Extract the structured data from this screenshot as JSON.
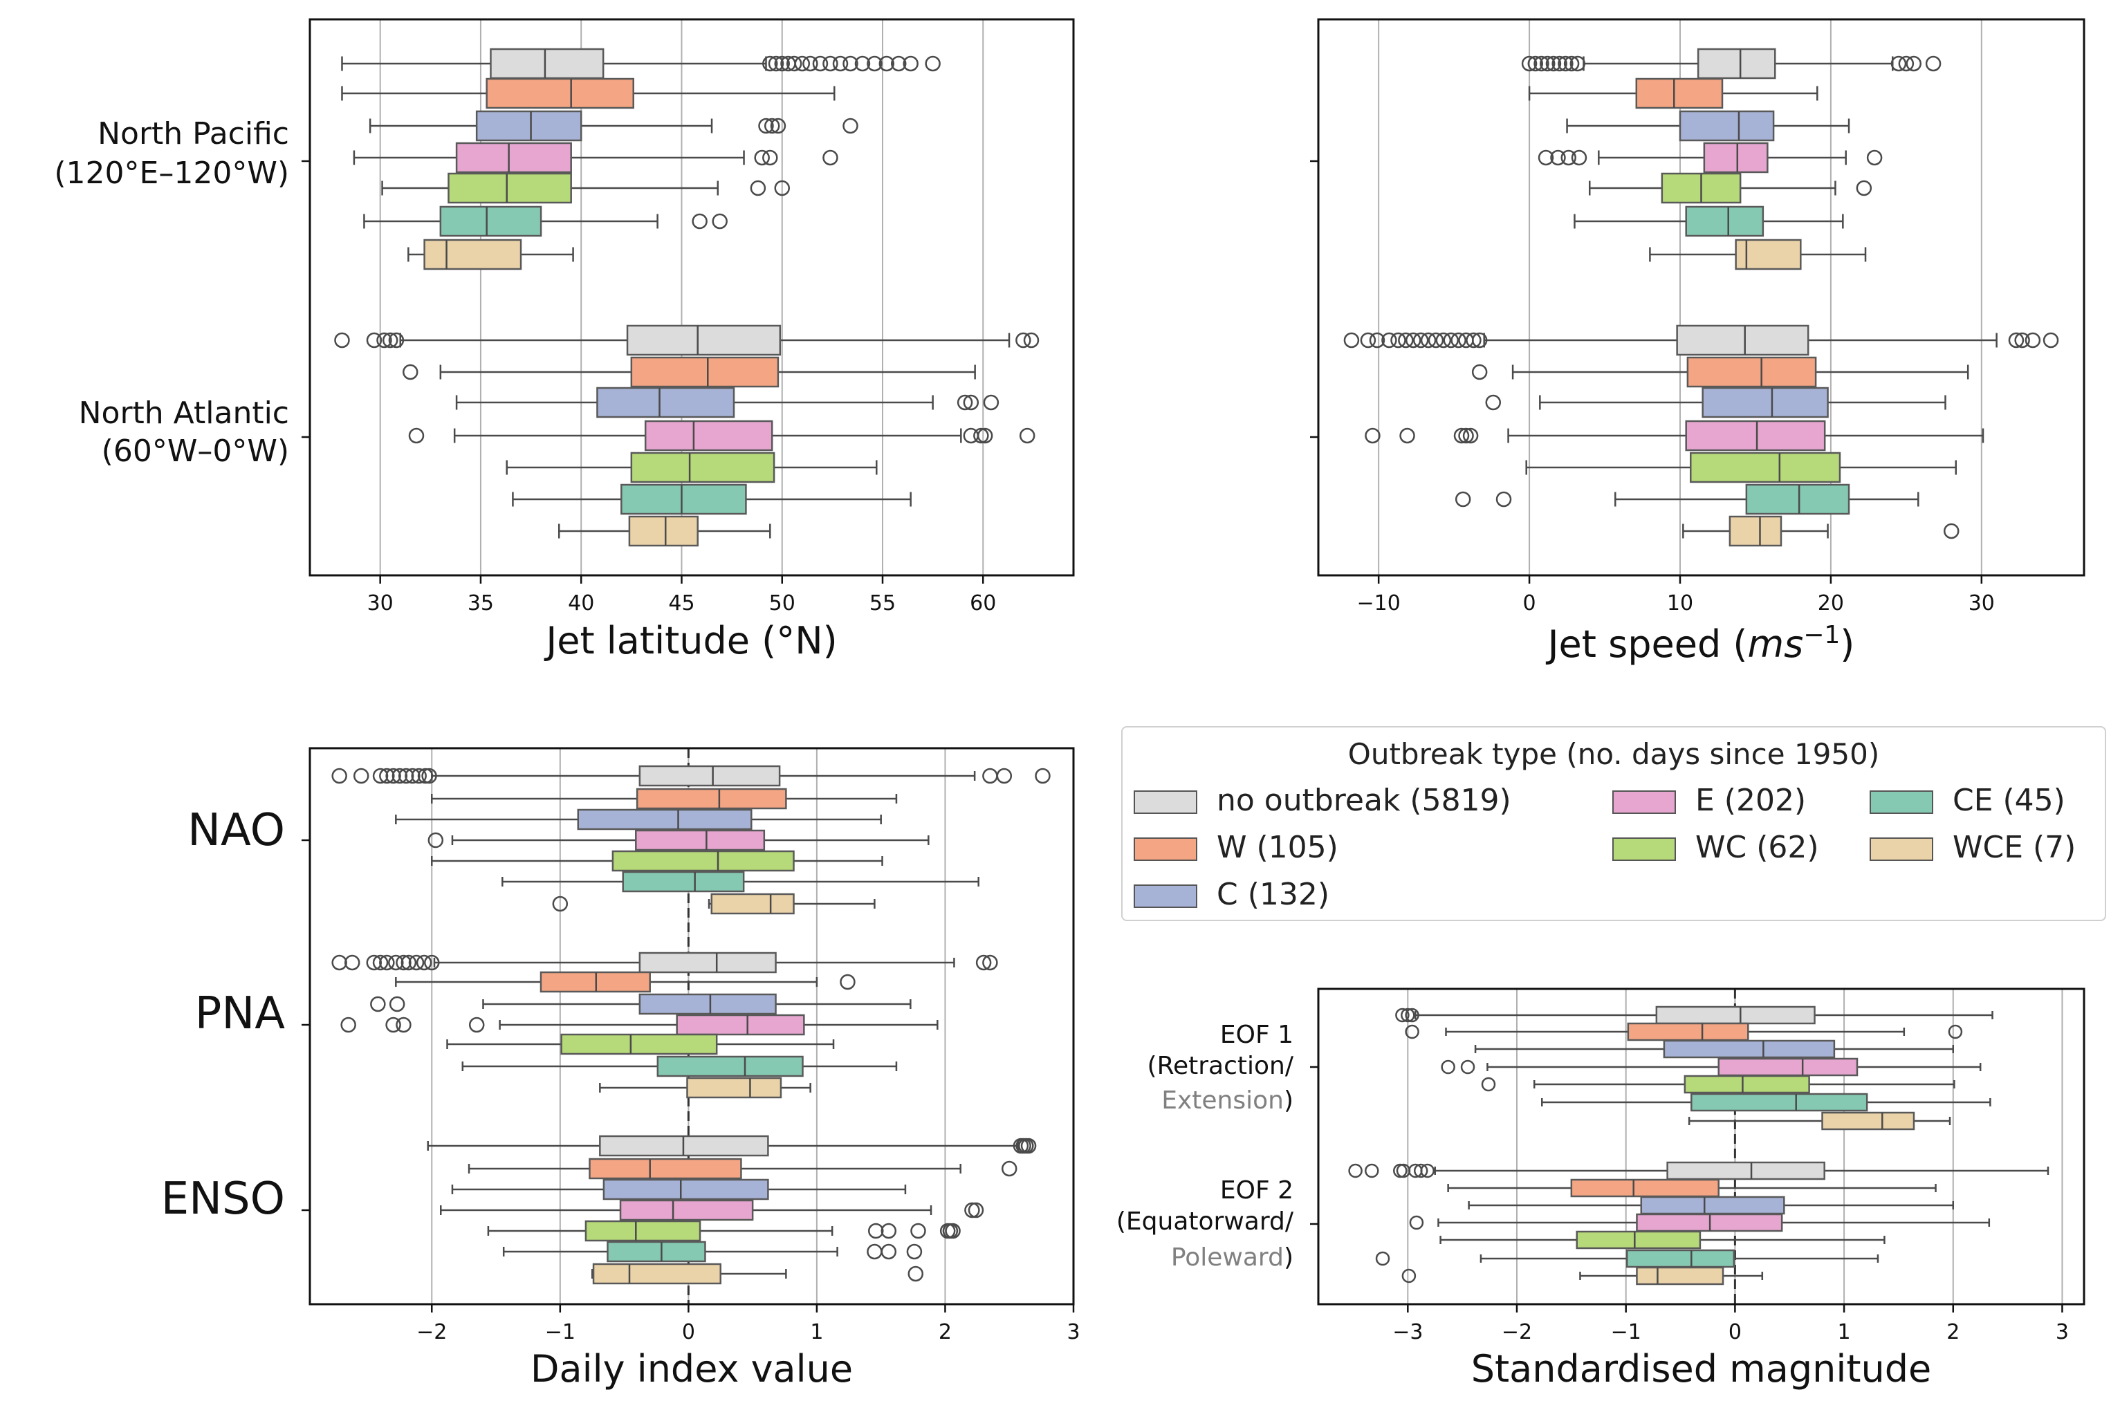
{
  "legend": {
    "title": "Outbreak type (no. days since 1950)",
    "entries": [
      {
        "label": "no outbreak (5819)",
        "color": "#dcdcdc"
      },
      {
        "label": "W (105)",
        "color": "#f4a583"
      },
      {
        "label": "C (132)",
        "color": "#a7b3d6"
      },
      {
        "label": "E (202)",
        "color": "#e6a6cf"
      },
      {
        "label": "WC (62)",
        "color": "#b6d979"
      },
      {
        "label": "CE (45)",
        "color": "#86c9b3"
      },
      {
        "label": "WCE (7)",
        "color": "#ebd3a9"
      }
    ]
  },
  "chart_data": [
    {
      "type": "boxplot",
      "xlabel": "Jet latitude (°N)",
      "xlim": [
        26.5,
        64.5
      ],
      "xticks": [
        30,
        35,
        40,
        45,
        50,
        55,
        60
      ],
      "grid": "vertical",
      "groups": [
        {
          "label_lines": [
            "North Pacific",
            "(120°E–120°W)"
          ],
          "boxes": [
            {
              "q1": 35.5,
              "med": 38.2,
              "q3": 41.1,
              "wlo": 28.1,
              "whi": 49.2,
              "out": [
                49.4,
                49.7,
                50.0,
                50.3,
                50.6,
                51.0,
                51.4,
                51.9,
                52.4,
                52.9,
                53.4,
                54.0,
                54.6,
                55.2,
                55.8,
                56.4,
                57.5
              ]
            },
            {
              "q1": 35.3,
              "med": 39.5,
              "q3": 42.6,
              "wlo": 28.1,
              "whi": 52.6,
              "out": []
            },
            {
              "q1": 34.8,
              "med": 37.5,
              "q3": 40.0,
              "wlo": 29.5,
              "whi": 46.5,
              "out": [
                49.2,
                49.5,
                49.8,
                53.4
              ]
            },
            {
              "q1": 33.8,
              "med": 36.4,
              "q3": 39.5,
              "wlo": 28.7,
              "whi": 48.1,
              "out": [
                49.0,
                49.4,
                52.4
              ]
            },
            {
              "q1": 33.4,
              "med": 36.3,
              "q3": 39.5,
              "wlo": 30.1,
              "whi": 46.8,
              "out": [
                48.8,
                50.0
              ]
            },
            {
              "q1": 33.0,
              "med": 35.3,
              "q3": 38.0,
              "wlo": 29.2,
              "whi": 43.8,
              "out": [
                45.9,
                46.9
              ]
            },
            {
              "q1": 32.2,
              "med": 33.3,
              "q3": 37.0,
              "wlo": 31.4,
              "whi": 39.6,
              "out": []
            }
          ]
        },
        {
          "label_lines": [
            "North Atlantic",
            "(60°W–0°W)"
          ],
          "boxes": [
            {
              "q1": 42.3,
              "med": 45.8,
              "q3": 49.9,
              "wlo": 31.0,
              "whi": 61.3,
              "out": [
                28.1,
                29.7,
                30.2,
                30.5,
                30.8,
                62.0,
                62.4
              ]
            },
            {
              "q1": 42.5,
              "med": 46.3,
              "q3": 49.8,
              "wlo": 33.0,
              "whi": 59.6,
              "out": [
                31.5
              ]
            },
            {
              "q1": 40.8,
              "med": 43.9,
              "q3": 47.6,
              "wlo": 33.8,
              "whi": 57.5,
              "out": [
                59.1,
                59.4,
                60.4
              ]
            },
            {
              "q1": 43.2,
              "med": 45.6,
              "q3": 49.5,
              "wlo": 33.7,
              "whi": 58.9,
              "out": [
                31.8,
                59.4,
                59.9,
                60.1,
                62.2
              ]
            },
            {
              "q1": 42.5,
              "med": 45.4,
              "q3": 49.6,
              "wlo": 36.3,
              "whi": 54.7,
              "out": []
            },
            {
              "q1": 42.0,
              "med": 45.0,
              "q3": 48.2,
              "wlo": 36.6,
              "whi": 56.4,
              "out": []
            },
            {
              "q1": 42.4,
              "med": 44.2,
              "q3": 45.8,
              "wlo": 38.9,
              "whi": 49.4,
              "out": []
            }
          ]
        }
      ]
    },
    {
      "type": "boxplot",
      "xlabel": "Jet speed (ms⁻¹)",
      "xlim": [
        -14.0,
        36.8
      ],
      "xticks": [
        -10,
        0,
        10,
        20,
        30
      ],
      "grid": "vertical",
      "groups": [
        {
          "label_lines": [],
          "boxes": [
            {
              "q1": 11.2,
              "med": 14.0,
              "q3": 16.3,
              "wlo": 3.6,
              "whi": 24.1,
              "out": [
                0.0,
                0.4,
                0.8,
                1.2,
                1.6,
                2.0,
                2.4,
                2.8,
                3.2,
                24.5,
                25.0,
                25.5,
                26.8
              ]
            },
            {
              "q1": 7.1,
              "med": 9.6,
              "q3": 12.8,
              "wlo": 0.0,
              "whi": 19.1,
              "out": []
            },
            {
              "q1": 10.0,
              "med": 13.9,
              "q3": 16.2,
              "wlo": 2.5,
              "whi": 21.2,
              "out": []
            },
            {
              "q1": 11.6,
              "med": 13.8,
              "q3": 15.8,
              "wlo": 4.6,
              "whi": 21.0,
              "out": [
                1.1,
                1.9,
                2.6,
                3.3,
                22.9
              ]
            },
            {
              "q1": 8.8,
              "med": 11.4,
              "q3": 14.0,
              "wlo": 4.0,
              "whi": 20.3,
              "out": [
                22.2
              ]
            },
            {
              "q1": 10.4,
              "med": 13.2,
              "q3": 15.5,
              "wlo": 3.0,
              "whi": 20.8,
              "out": []
            },
            {
              "q1": 13.7,
              "med": 14.4,
              "q3": 18.0,
              "wlo": 8.0,
              "whi": 22.3,
              "out": []
            }
          ]
        },
        {
          "label_lines": [],
          "boxes": [
            {
              "q1": 9.8,
              "med": 14.3,
              "q3": 18.5,
              "wlo": -3.0,
              "whi": 31.0,
              "out": [
                -11.8,
                -10.7,
                -10.1,
                -9.3,
                -8.7,
                -8.2,
                -7.7,
                -7.2,
                -6.7,
                -6.2,
                -5.7,
                -5.2,
                -4.7,
                -4.2,
                -3.7,
                -3.3,
                32.3,
                32.7,
                33.4,
                34.6
              ]
            },
            {
              "q1": 10.5,
              "med": 15.4,
              "q3": 19.0,
              "wlo": -1.1,
              "whi": 29.1,
              "out": [
                -3.3
              ]
            },
            {
              "q1": 11.5,
              "med": 16.1,
              "q3": 19.8,
              "wlo": 0.7,
              "whi": 27.6,
              "out": [
                -2.4
              ]
            },
            {
              "q1": 10.4,
              "med": 15.1,
              "q3": 19.6,
              "wlo": -1.4,
              "whi": 30.1,
              "out": [
                -10.4,
                -8.1,
                -4.5,
                -4.2,
                -3.9
              ]
            },
            {
              "q1": 10.7,
              "med": 16.6,
              "q3": 20.6,
              "wlo": -0.2,
              "whi": 28.3,
              "out": []
            },
            {
              "q1": 14.4,
              "med": 17.9,
              "q3": 21.2,
              "wlo": 5.7,
              "whi": 25.8,
              "out": [
                -4.4,
                -1.7
              ]
            },
            {
              "q1": 13.3,
              "med": 15.3,
              "q3": 16.7,
              "wlo": 10.2,
              "whi": 19.8,
              "out": [
                28.0
              ]
            }
          ]
        }
      ]
    },
    {
      "type": "boxplot",
      "xlabel": "Daily index value",
      "xlim": [
        -2.95,
        3.0
      ],
      "xticks": [
        -2,
        -1,
        0,
        1,
        2,
        3
      ],
      "grid": "vertical",
      "zero_line": true,
      "groups": [
        {
          "label_lines": [
            "NAO"
          ],
          "boxes": [
            {
              "q1": -0.38,
              "med": 0.19,
              "q3": 0.71,
              "wlo": -2.0,
              "whi": 2.23,
              "out": [
                -2.72,
                -2.55,
                -2.4,
                -2.35,
                -2.3,
                -2.25,
                -2.2,
                -2.15,
                -2.1,
                -2.05,
                -2.02,
                2.35,
                2.46,
                2.76
              ]
            },
            {
              "q1": -0.4,
              "med": 0.24,
              "q3": 0.76,
              "wlo": -2.0,
              "whi": 1.62,
              "out": []
            },
            {
              "q1": -0.86,
              "med": -0.08,
              "q3": 0.49,
              "wlo": -2.28,
              "whi": 1.5,
              "out": []
            },
            {
              "q1": -0.41,
              "med": 0.14,
              "q3": 0.59,
              "wlo": -1.84,
              "whi": 1.87,
              "out": [
                -1.97
              ]
            },
            {
              "q1": -0.59,
              "med": 0.23,
              "q3": 0.82,
              "wlo": -2.0,
              "whi": 1.51,
              "out": []
            },
            {
              "q1": -0.51,
              "med": 0.05,
              "q3": 0.43,
              "wlo": -1.45,
              "whi": 2.26,
              "out": []
            },
            {
              "q1": 0.18,
              "med": 0.64,
              "q3": 0.82,
              "wlo": 0.16,
              "whi": 1.45,
              "out": [
                -1.0
              ]
            }
          ]
        },
        {
          "label_lines": [
            "PNA"
          ],
          "boxes": [
            {
              "q1": -0.38,
              "med": 0.22,
              "q3": 0.68,
              "wlo": -1.98,
              "whi": 2.07,
              "out": [
                -2.72,
                -2.62,
                -2.45,
                -2.4,
                -2.35,
                -2.28,
                -2.22,
                -2.18,
                -2.12,
                -2.06,
                -2.0,
                2.3,
                2.35
              ]
            },
            {
              "q1": -1.15,
              "med": -0.72,
              "q3": -0.3,
              "wlo": -2.28,
              "whi": 1.0,
              "out": [
                1.24
              ]
            },
            {
              "q1": -0.38,
              "med": 0.17,
              "q3": 0.68,
              "wlo": -1.6,
              "whi": 1.73,
              "out": [
                -2.42,
                -2.27
              ]
            },
            {
              "q1": -0.09,
              "med": 0.46,
              "q3": 0.9,
              "wlo": -1.47,
              "whi": 1.94,
              "out": [
                -2.65,
                -2.3,
                -2.22,
                -1.65
              ]
            },
            {
              "q1": -0.99,
              "med": -0.45,
              "q3": 0.22,
              "wlo": -1.88,
              "whi": 1.13,
              "out": []
            },
            {
              "q1": -0.24,
              "med": 0.44,
              "q3": 0.89,
              "wlo": -1.76,
              "whi": 1.62,
              "out": []
            },
            {
              "q1": -0.01,
              "med": 0.48,
              "q3": 0.72,
              "wlo": -0.69,
              "whi": 0.95,
              "out": []
            }
          ]
        },
        {
          "label_lines": [
            "ENSO"
          ],
          "boxes": [
            {
              "q1": -0.69,
              "med": -0.04,
              "q3": 0.62,
              "wlo": -2.03,
              "whi": 2.57,
              "out": [
                2.59,
                2.61,
                2.63,
                2.65
              ]
            },
            {
              "q1": -0.77,
              "med": -0.3,
              "q3": 0.41,
              "wlo": -1.71,
              "whi": 2.12,
              "out": [
                2.5
              ]
            },
            {
              "q1": -0.66,
              "med": -0.06,
              "q3": 0.62,
              "wlo": -1.84,
              "whi": 1.69,
              "out": []
            },
            {
              "q1": -0.53,
              "med": -0.12,
              "q3": 0.5,
              "wlo": -1.93,
              "whi": 1.89,
              "out": [
                2.21,
                2.24
              ]
            },
            {
              "q1": -0.8,
              "med": -0.41,
              "q3": 0.09,
              "wlo": -1.56,
              "whi": 1.12,
              "out": [
                1.46,
                1.56,
                1.79,
                2.02,
                2.04,
                2.06
              ]
            },
            {
              "q1": -0.63,
              "med": -0.21,
              "q3": 0.13,
              "wlo": -1.44,
              "whi": 1.16,
              "out": [
                1.45,
                1.56,
                1.76
              ]
            },
            {
              "q1": -0.74,
              "med": -0.46,
              "q3": 0.25,
              "wlo": -0.75,
              "whi": 0.76,
              "out": [
                1.77
              ]
            }
          ]
        }
      ]
    },
    {
      "type": "boxplot",
      "xlabel": "Standardised magnitude",
      "xlim": [
        -3.82,
        3.2
      ],
      "xticks": [
        -3,
        -2,
        -1,
        0,
        1,
        2,
        3
      ],
      "grid": "vertical",
      "zero_line": true,
      "groups": [
        {
          "label_lines": [
            "EOF 1",
            "(Retraction/",
            [
              "Extension",
              ")"
            ]
          ],
          "boxes": [
            {
              "q1": -0.72,
              "med": 0.05,
              "q3": 0.73,
              "wlo": -2.93,
              "whi": 2.36,
              "out": [
                -3.05,
                -3.0,
                -2.96
              ]
            },
            {
              "q1": -0.98,
              "med": -0.3,
              "q3": 0.12,
              "wlo": -2.65,
              "whi": 1.55,
              "out": [
                -2.96,
                2.02
              ]
            },
            {
              "q1": -0.65,
              "med": 0.26,
              "q3": 0.91,
              "wlo": -2.38,
              "whi": 2.0,
              "out": []
            },
            {
              "q1": -0.15,
              "med": 0.62,
              "q3": 1.12,
              "wlo": -2.27,
              "whi": 2.25,
              "out": [
                -2.45,
                -2.63
              ]
            },
            {
              "q1": -0.46,
              "med": 0.07,
              "q3": 0.68,
              "wlo": -1.84,
              "whi": 2.01,
              "out": [
                -2.26
              ]
            },
            {
              "q1": -0.4,
              "med": 0.56,
              "q3": 1.21,
              "wlo": -1.77,
              "whi": 2.34,
              "out": []
            },
            {
              "q1": 0.8,
              "med": 1.35,
              "q3": 1.64,
              "wlo": -0.42,
              "whi": 1.97,
              "out": []
            }
          ]
        },
        {
          "label_lines": [
            "EOF 2",
            "(Equatorward/",
            [
              "Poleward",
              ")"
            ]
          ],
          "boxes": [
            {
              "q1": -0.62,
              "med": 0.15,
              "q3": 0.82,
              "wlo": -2.75,
              "whi": 2.87,
              "out": [
                -3.48,
                -3.33,
                -3.07,
                -3.04,
                -2.93,
                -2.88,
                -2.82
              ]
            },
            {
              "q1": -1.5,
              "med": -0.93,
              "q3": -0.15,
              "wlo": -2.63,
              "whi": 1.84,
              "out": []
            },
            {
              "q1": -0.86,
              "med": -0.28,
              "q3": 0.45,
              "wlo": -2.44,
              "whi": 2.0,
              "out": []
            },
            {
              "q1": -0.9,
              "med": -0.23,
              "q3": 0.43,
              "wlo": -2.72,
              "whi": 2.33,
              "out": [
                -2.92
              ]
            },
            {
              "q1": -1.45,
              "med": -0.92,
              "q3": -0.32,
              "wlo": -2.7,
              "whi": 1.37,
              "out": []
            },
            {
              "q1": -0.99,
              "med": -0.4,
              "q3": -0.01,
              "wlo": -2.33,
              "whi": 1.31,
              "out": [
                -3.23
              ]
            },
            {
              "q1": -0.9,
              "med": -0.71,
              "q3": -0.11,
              "wlo": -1.42,
              "whi": 0.25,
              "out": [
                -2.99
              ]
            }
          ]
        }
      ]
    }
  ]
}
